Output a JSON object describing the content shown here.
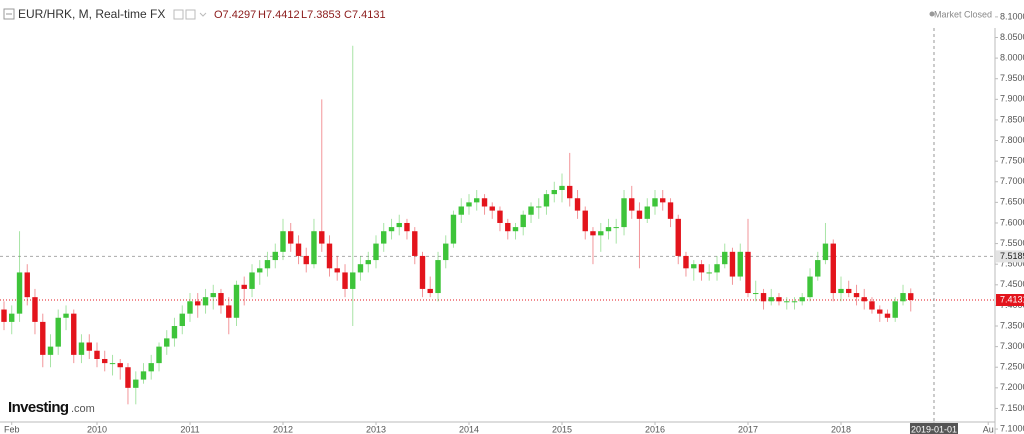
{
  "chart_data": {
    "type": "candlestick",
    "title": "EUR/HRK, M, Real-time FX",
    "legend_values": [
      "O7.4297",
      "H7.4412",
      "L7.3853",
      "C7.4131"
    ],
    "status": "Market Closed",
    "logo": {
      "brand": "Investing",
      "suffix": ".com"
    },
    "up_color": "#3ec43a",
    "down_color": "#e3141c",
    "xlim": [
      2008.957,
      2019.656
    ],
    "ylim": [
      7.088,
      8.141
    ],
    "xticks": [
      {
        "value": 2009.083,
        "label": "Feb"
      },
      2010,
      2011,
      2012,
      2013,
      2014,
      2015,
      2016,
      2017,
      2018,
      {
        "value": 2019,
        "label": "2019-01-01"
      },
      {
        "value": 2019.583,
        "label": "Au"
      }
    ],
    "crosshair_x": 2019,
    "yticks": [
      {
        "value": 7.1,
        "label": "7.1000"
      },
      {
        "value": 7.15,
        "label": "7.1500"
      },
      {
        "value": 7.2,
        "label": "7.2000"
      },
      {
        "value": 7.25,
        "label": "7.2500"
      },
      {
        "value": 7.3,
        "label": "7.3000"
      },
      {
        "value": 7.35,
        "label": "7.3500"
      },
      {
        "value": 7.4,
        "label": "7.4000"
      },
      {
        "value": 7.45,
        "label": "7.4500"
      },
      {
        "value": 7.5,
        "label": "7.5000"
      },
      {
        "value": 7.55,
        "label": "7.5500"
      },
      {
        "value": 7.6,
        "label": "7.6000"
      },
      {
        "value": 7.65,
        "label": "7.6500"
      },
      {
        "value": 7.7,
        "label": "7.7000"
      },
      {
        "value": 7.75,
        "label": "7.7500"
      },
      {
        "value": 7.8,
        "label": "7.8000"
      },
      {
        "value": 7.85,
        "label": "7.8500"
      },
      {
        "value": 7.9,
        "label": "7.9000"
      },
      {
        "value": 7.95,
        "label": "7.9500"
      },
      {
        "value": 8.0,
        "label": "8.0000"
      },
      {
        "value": 8.05,
        "label": "8.0500"
      },
      {
        "value": 8.1,
        "label": "8.1000"
      }
    ],
    "reference_line": 7.5189,
    "x": [
      2009,
      2009.083,
      2009.167,
      2009.25,
      2009.333,
      2009.417,
      2009.5,
      2009.583,
      2009.667,
      2009.75,
      2009.833,
      2009.917,
      2010,
      2010.083,
      2010.167,
      2010.25,
      2010.333,
      2010.417,
      2010.5,
      2010.583,
      2010.667,
      2010.75,
      2010.833,
      2010.917,
      2011,
      2011.083,
      2011.167,
      2011.25,
      2011.333,
      2011.417,
      2011.5,
      2011.583,
      2011.667,
      2011.75,
      2011.833,
      2011.917,
      2012,
      2012.083,
      2012.167,
      2012.25,
      2012.333,
      2012.417,
      2012.5,
      2012.583,
      2012.667,
      2012.75,
      2012.833,
      2012.917,
      2013,
      2013.083,
      2013.167,
      2013.25,
      2013.333,
      2013.417,
      2013.5,
      2013.583,
      2013.667,
      2013.75,
      2013.833,
      2013.917,
      2014,
      2014.083,
      2014.167,
      2014.25,
      2014.333,
      2014.417,
      2014.5,
      2014.583,
      2014.667,
      2014.75,
      2014.833,
      2014.917,
      2015,
      2015.083,
      2015.167,
      2015.25,
      2015.333,
      2015.417,
      2015.5,
      2015.583,
      2015.667,
      2015.75,
      2015.833,
      2015.917,
      2016,
      2016.083,
      2016.167,
      2016.25,
      2016.333,
      2016.417,
      2016.5,
      2016.583,
      2016.667,
      2016.75,
      2016.833,
      2016.917,
      2017,
      2017.083,
      2017.167,
      2017.25,
      2017.333,
      2017.417,
      2017.5,
      2017.583,
      2017.667,
      2017.75,
      2017.833,
      2017.917,
      2018,
      2018.083,
      2018.167,
      2018.25,
      2018.333,
      2018.417,
      2018.5,
      2018.583,
      2018.667,
      2018.75
    ],
    "candles": [
      [
        7.39,
        7.41,
        7.34,
        7.36
      ],
      [
        7.36,
        7.4,
        7.33,
        7.38
      ],
      [
        7.38,
        7.58,
        7.36,
        7.48
      ],
      [
        7.48,
        7.5,
        7.4,
        7.42
      ],
      [
        7.42,
        7.44,
        7.33,
        7.36
      ],
      [
        7.36,
        7.38,
        7.25,
        7.28
      ],
      [
        7.28,
        7.33,
        7.25,
        7.3
      ],
      [
        7.3,
        7.39,
        7.28,
        7.37
      ],
      [
        7.37,
        7.4,
        7.34,
        7.38
      ],
      [
        7.38,
        7.39,
        7.26,
        7.28
      ],
      [
        7.28,
        7.33,
        7.26,
        7.31
      ],
      [
        7.31,
        7.33,
        7.27,
        7.29
      ],
      [
        7.29,
        7.31,
        7.25,
        7.27
      ],
      [
        7.27,
        7.29,
        7.24,
        7.26
      ],
      [
        7.26,
        7.28,
        7.23,
        7.26
      ],
      [
        7.26,
        7.27,
        7.22,
        7.25
      ],
      [
        7.25,
        7.26,
        7.16,
        7.2
      ],
      [
        7.2,
        7.24,
        7.16,
        7.22
      ],
      [
        7.22,
        7.26,
        7.21,
        7.24
      ],
      [
        7.24,
        7.28,
        7.22,
        7.26
      ],
      [
        7.26,
        7.31,
        7.24,
        7.3
      ],
      [
        7.3,
        7.34,
        7.28,
        7.32
      ],
      [
        7.32,
        7.37,
        7.3,
        7.35
      ],
      [
        7.35,
        7.4,
        7.33,
        7.38
      ],
      [
        7.38,
        7.43,
        7.36,
        7.41
      ],
      [
        7.41,
        7.43,
        7.37,
        7.4
      ],
      [
        7.4,
        7.44,
        7.38,
        7.42
      ],
      [
        7.42,
        7.45,
        7.39,
        7.43
      ],
      [
        7.43,
        7.44,
        7.38,
        7.4
      ],
      [
        7.4,
        7.42,
        7.33,
        7.37
      ],
      [
        7.37,
        7.46,
        7.35,
        7.45
      ],
      [
        7.45,
        7.47,
        7.4,
        7.44
      ],
      [
        7.44,
        7.5,
        7.42,
        7.48
      ],
      [
        7.48,
        7.51,
        7.45,
        7.49
      ],
      [
        7.49,
        7.53,
        7.47,
        7.51
      ],
      [
        7.51,
        7.55,
        7.49,
        7.53
      ],
      [
        7.53,
        7.61,
        7.51,
        7.58
      ],
      [
        7.58,
        7.6,
        7.53,
        7.55
      ],
      [
        7.55,
        7.57,
        7.5,
        7.52
      ],
      [
        7.52,
        7.54,
        7.48,
        7.5
      ],
      [
        7.5,
        7.61,
        7.49,
        7.58
      ],
      [
        7.58,
        7.9,
        7.53,
        7.55
      ],
      [
        7.55,
        7.57,
        7.47,
        7.49
      ],
      [
        7.49,
        7.52,
        7.46,
        7.48
      ],
      [
        7.48,
        7.5,
        7.42,
        7.44
      ],
      [
        7.44,
        8.03,
        7.35,
        7.48
      ],
      [
        7.48,
        7.52,
        7.46,
        7.5
      ],
      [
        7.5,
        7.53,
        7.48,
        7.51
      ],
      [
        7.51,
        7.57,
        7.49,
        7.55
      ],
      [
        7.55,
        7.6,
        7.53,
        7.58
      ],
      [
        7.58,
        7.61,
        7.56,
        7.59
      ],
      [
        7.59,
        7.62,
        7.57,
        7.6
      ],
      [
        7.6,
        7.61,
        7.56,
        7.58
      ],
      [
        7.58,
        7.59,
        7.5,
        7.52
      ],
      [
        7.52,
        7.53,
        7.42,
        7.44
      ],
      [
        7.44,
        7.47,
        7.42,
        7.43
      ],
      [
        7.43,
        7.53,
        7.41,
        7.51
      ],
      [
        7.51,
        7.57,
        7.49,
        7.55
      ],
      [
        7.55,
        7.63,
        7.54,
        7.62
      ],
      [
        7.62,
        7.66,
        7.6,
        7.64
      ],
      [
        7.64,
        7.67,
        7.62,
        7.65
      ],
      [
        7.65,
        7.68,
        7.63,
        7.66
      ],
      [
        7.66,
        7.67,
        7.62,
        7.64
      ],
      [
        7.64,
        7.65,
        7.61,
        7.63
      ],
      [
        7.63,
        7.64,
        7.58,
        7.6
      ],
      [
        7.6,
        7.61,
        7.56,
        7.58
      ],
      [
        7.58,
        7.6,
        7.56,
        7.59
      ],
      [
        7.59,
        7.63,
        7.57,
        7.62
      ],
      [
        7.62,
        7.65,
        7.6,
        7.64
      ],
      [
        7.64,
        7.66,
        7.61,
        7.64
      ],
      [
        7.64,
        7.68,
        7.62,
        7.67
      ],
      [
        7.67,
        7.7,
        7.65,
        7.68
      ],
      [
        7.68,
        7.72,
        7.65,
        7.69
      ],
      [
        7.69,
        7.77,
        7.64,
        7.66
      ],
      [
        7.66,
        7.68,
        7.61,
        7.63
      ],
      [
        7.63,
        7.64,
        7.56,
        7.58
      ],
      [
        7.58,
        7.59,
        7.5,
        7.57
      ],
      [
        7.57,
        7.6,
        7.53,
        7.58
      ],
      [
        7.58,
        7.61,
        7.56,
        7.59
      ],
      [
        7.59,
        7.61,
        7.55,
        7.59
      ],
      [
        7.59,
        7.68,
        7.57,
        7.66
      ],
      [
        7.66,
        7.69,
        7.61,
        7.63
      ],
      [
        7.63,
        7.65,
        7.49,
        7.61
      ],
      [
        7.61,
        7.66,
        7.6,
        7.64
      ],
      [
        7.64,
        7.68,
        7.62,
        7.66
      ],
      [
        7.66,
        7.68,
        7.63,
        7.65
      ],
      [
        7.65,
        7.66,
        7.59,
        7.61
      ],
      [
        7.61,
        7.62,
        7.5,
        7.52
      ],
      [
        7.52,
        7.53,
        7.47,
        7.49
      ],
      [
        7.49,
        7.51,
        7.46,
        7.5
      ],
      [
        7.5,
        7.51,
        7.46,
        7.48
      ],
      [
        7.48,
        7.5,
        7.46,
        7.48
      ],
      [
        7.48,
        7.52,
        7.46,
        7.5
      ],
      [
        7.5,
        7.55,
        7.49,
        7.53
      ],
      [
        7.53,
        7.54,
        7.45,
        7.47
      ],
      [
        7.47,
        7.55,
        7.46,
        7.53
      ],
      [
        7.53,
        7.61,
        7.42,
        7.43
      ],
      [
        7.43,
        7.46,
        7.41,
        7.43
      ],
      [
        7.43,
        7.44,
        7.39,
        7.41
      ],
      [
        7.41,
        7.44,
        7.4,
        7.42
      ],
      [
        7.42,
        7.43,
        7.4,
        7.41
      ],
      [
        7.41,
        7.42,
        7.39,
        7.41
      ],
      [
        7.41,
        7.42,
        7.39,
        7.41
      ],
      [
        7.41,
        7.43,
        7.4,
        7.42
      ],
      [
        7.42,
        7.49,
        7.41,
        7.47
      ],
      [
        7.47,
        7.53,
        7.46,
        7.51
      ],
      [
        7.51,
        7.6,
        7.5,
        7.55
      ],
      [
        7.55,
        7.56,
        7.41,
        7.43
      ],
      [
        7.43,
        7.47,
        7.41,
        7.44
      ],
      [
        7.44,
        7.46,
        7.42,
        7.43
      ],
      [
        7.43,
        7.45,
        7.4,
        7.42
      ],
      [
        7.42,
        7.44,
        7.39,
        7.41
      ],
      [
        7.41,
        7.42,
        7.38,
        7.39
      ],
      [
        7.39,
        7.4,
        7.36,
        7.38
      ],
      [
        7.38,
        7.39,
        7.36,
        7.37
      ],
      [
        7.37,
        7.42,
        7.36,
        7.41
      ],
      [
        7.41,
        7.45,
        7.4,
        7.43
      ],
      [
        7.4297,
        7.4412,
        7.3853,
        7.4131
      ]
    ]
  }
}
